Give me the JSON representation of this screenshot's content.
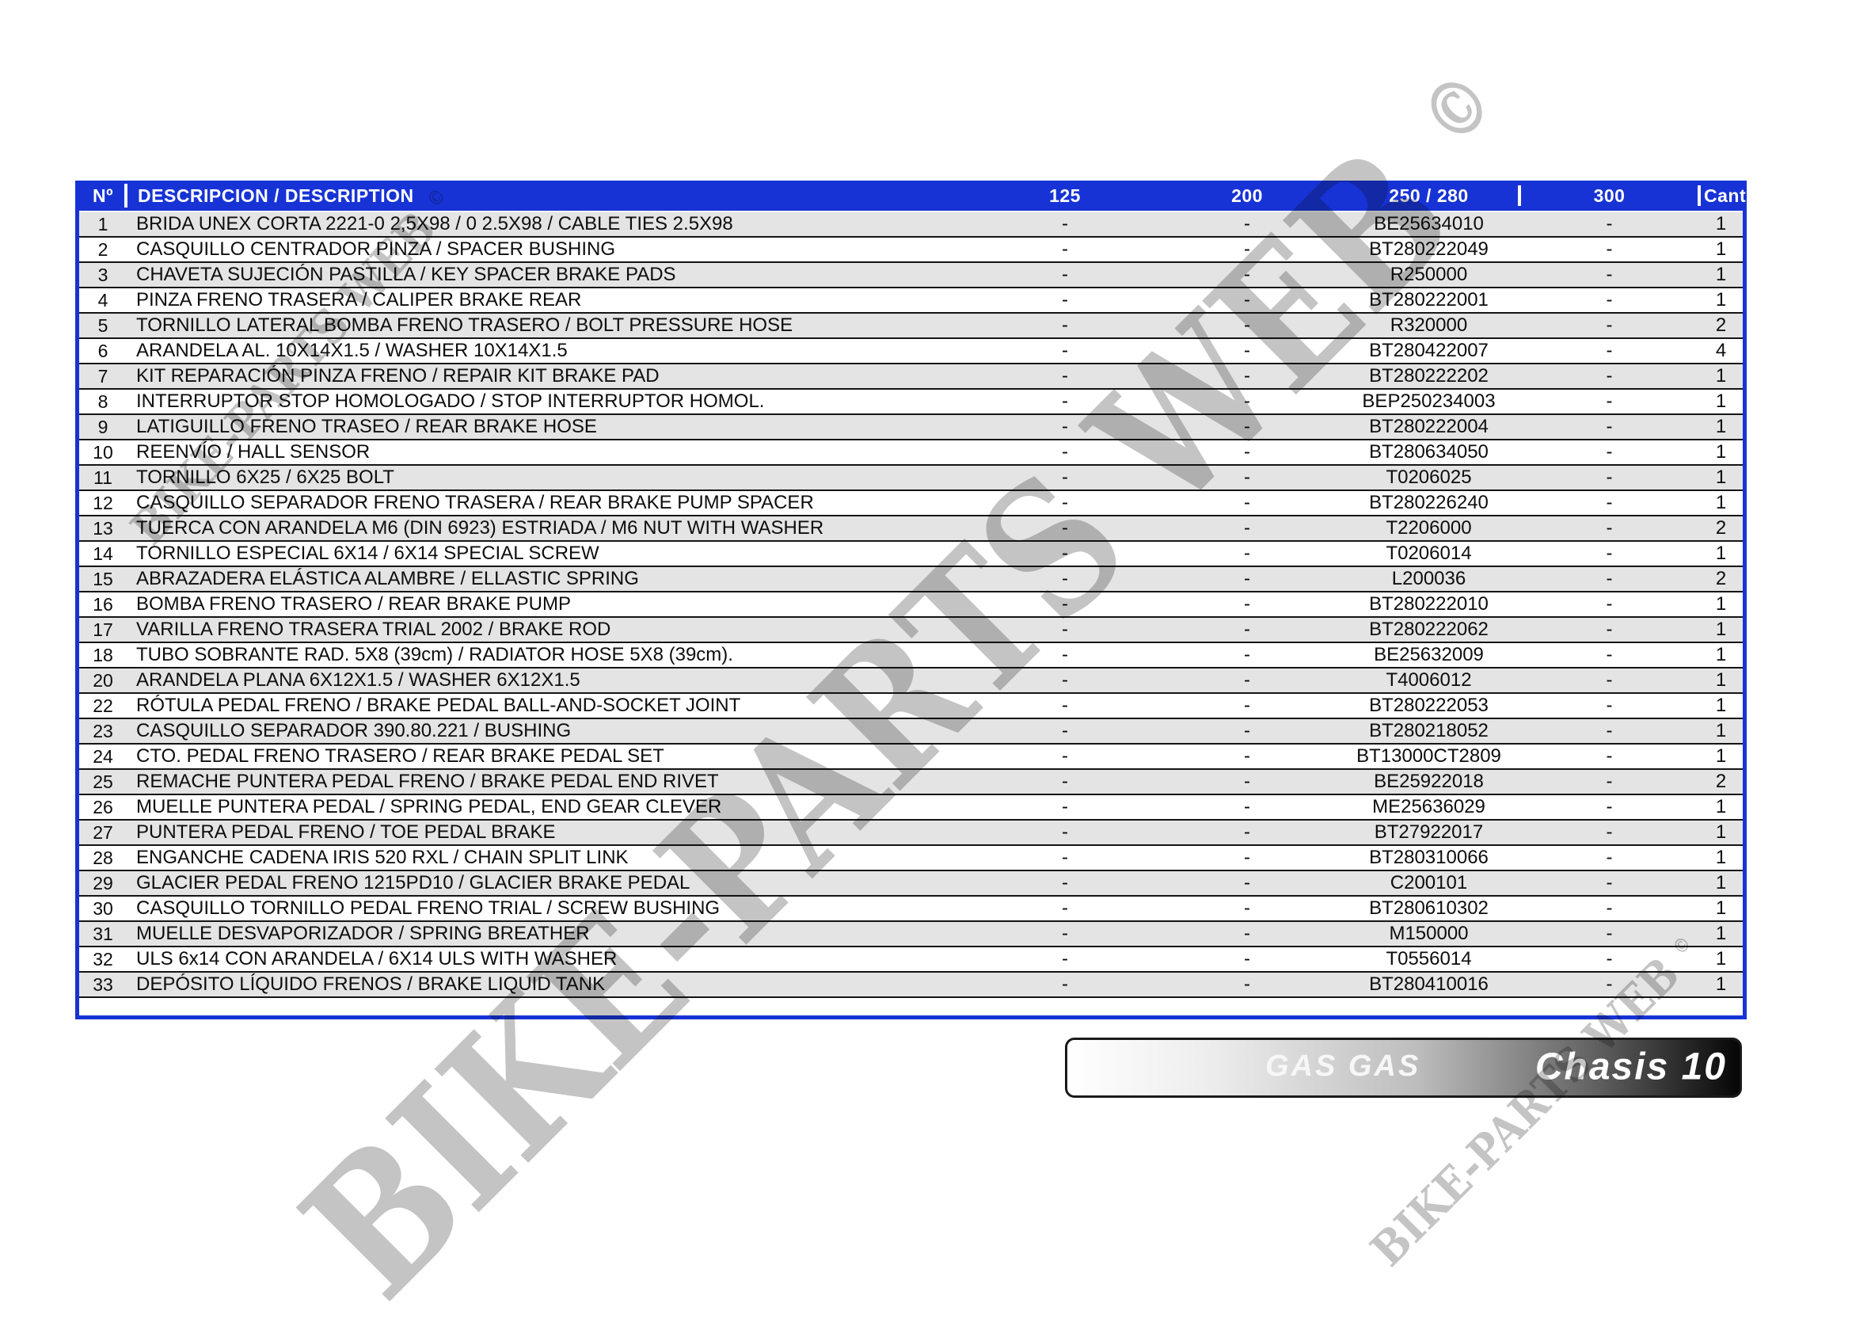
{
  "watermark": {
    "text": "BIKE-PARTS WEB",
    "symbol": "©",
    "color": "#c4c4c4"
  },
  "banner": {
    "brand": "GAS GAS",
    "title": "Chasis 10"
  },
  "table": {
    "header_bg": "#1733d6",
    "headers": {
      "no": "Nº",
      "description": "DESCRIPCION / DESCRIPTION",
      "c125": "125",
      "c200": "200",
      "c250": "250 / 280",
      "c300": "300",
      "cant": "Cant."
    },
    "rows": [
      {
        "no": "1",
        "description": "BRIDA UNEX CORTA 2221-0 2,5X98 / 0 2.5X98 / CABLE TIES 2.5X98",
        "c125": "-",
        "c200": "-",
        "part": "BE25634010",
        "c300": "-",
        "cant": "1"
      },
      {
        "no": "2",
        "description": "CASQUILLO CENTRADOR PINZA / SPACER BUSHING",
        "c125": "-",
        "c200": "-",
        "part": "BT280222049",
        "c300": "-",
        "cant": "1"
      },
      {
        "no": "3",
        "description": "CHAVETA SUJECIÓN PASTILLA / KEY SPACER BRAKE PADS",
        "c125": "-",
        "c200": "-",
        "part": "R250000",
        "c300": "-",
        "cant": "1"
      },
      {
        "no": "4",
        "description": "PINZA FRENO TRASERA / CALIPER BRAKE REAR",
        "c125": "-",
        "c200": "-",
        "part": "BT280222001",
        "c300": "-",
        "cant": "1"
      },
      {
        "no": "5",
        "description": "TORNILLO LATERAL BOMBA FRENO TRASERO / BOLT PRESSURE HOSE",
        "c125": "-",
        "c200": "-",
        "part": "R320000",
        "c300": "-",
        "cant": "2"
      },
      {
        "no": "6",
        "description": "ARANDELA AL. 10X14X1.5 / WASHER 10X14X1.5",
        "c125": "-",
        "c200": "-",
        "part": "BT280422007",
        "c300": "-",
        "cant": "4"
      },
      {
        "no": "7",
        "description": "KIT REPARACIÓN PINZA FRENO / REPAIR KIT BRAKE PAD",
        "c125": "-",
        "c200": "-",
        "part": "BT280222202",
        "c300": "-",
        "cant": "1"
      },
      {
        "no": "8",
        "description": "INTERRUPTOR STOP HOMOLOGADO / STOP INTERRUPTOR HOMOL.",
        "c125": "-",
        "c200": "-",
        "part": "BEP250234003",
        "c300": "-",
        "cant": "1"
      },
      {
        "no": "9",
        "description": "LATIGUILLO FRENO TRASEO / REAR BRAKE HOSE",
        "c125": "-",
        "c200": "-",
        "part": "BT280222004",
        "c300": "-",
        "cant": "1"
      },
      {
        "no": "10",
        "description": "REENVÍO / HALL SENSOR",
        "c125": "-",
        "c200": "-",
        "part": "BT280634050",
        "c300": "-",
        "cant": "1"
      },
      {
        "no": "11",
        "description": "TORNILLO 6X25 / 6X25 BOLT",
        "c125": "-",
        "c200": "-",
        "part": "T0206025",
        "c300": "-",
        "cant": "1"
      },
      {
        "no": "12",
        "description": "CASQUILLO SEPARADOR FRENO TRASERA / REAR BRAKE PUMP SPACER",
        "c125": "-",
        "c200": "-",
        "part": "BT280226240",
        "c300": "-",
        "cant": "1"
      },
      {
        "no": "13",
        "description": "TUERCA CON ARANDELA M6 (DIN 6923) ESTRIADA / M6 NUT WITH WASHER",
        "c125": "-",
        "c200": "-",
        "part": "T2206000",
        "c300": "-",
        "cant": "2"
      },
      {
        "no": "14",
        "description": "TORNILLO ESPECIAL 6X14 / 6X14 SPECIAL SCREW",
        "c125": "-",
        "c200": "-",
        "part": "T0206014",
        "c300": "-",
        "cant": "1"
      },
      {
        "no": "15",
        "description": "ABRAZADERA ELÁSTICA ALAMBRE / ELLASTIC SPRING",
        "c125": "-",
        "c200": "-",
        "part": "L200036",
        "c300": "-",
        "cant": "2"
      },
      {
        "no": "16",
        "description": "BOMBA FRENO TRASERO / REAR BRAKE PUMP",
        "c125": "-",
        "c200": "-",
        "part": "BT280222010",
        "c300": "-",
        "cant": "1"
      },
      {
        "no": "17",
        "description": "VARILLA FRENO TRASERA TRIAL 2002 / BRAKE ROD",
        "c125": "-",
        "c200": "-",
        "part": "BT280222062",
        "c300": "-",
        "cant": "1"
      },
      {
        "no": "18",
        "description": "TUBO SOBRANTE RAD. 5X8 (39cm) / RADIATOR HOSE 5X8 (39cm).",
        "c125": "-",
        "c200": "-",
        "part": "BE25632009",
        "c300": "-",
        "cant": "1"
      },
      {
        "no": "20",
        "description": "ARANDELA PLANA 6X12X1.5 / WASHER 6X12X1.5",
        "c125": "-",
        "c200": "-",
        "part": "T4006012",
        "c300": "-",
        "cant": "1"
      },
      {
        "no": "22",
        "description": "RÓTULA PEDAL FRENO / BRAKE PEDAL BALL-AND-SOCKET JOINT",
        "c125": "-",
        "c200": "-",
        "part": "BT280222053",
        "c300": "-",
        "cant": "1"
      },
      {
        "no": "23",
        "description": "CASQUILLO SEPARADOR 390.80.221 / BUSHING",
        "c125": "-",
        "c200": "-",
        "part": "BT280218052",
        "c300": "-",
        "cant": "1"
      },
      {
        "no": "24",
        "description": "CTO. PEDAL FRENO TRASERO / REAR BRAKE PEDAL SET",
        "c125": "-",
        "c200": "-",
        "part": "BT13000CT2809",
        "c300": "-",
        "cant": "1"
      },
      {
        "no": "25",
        "description": "REMACHE PUNTERA PEDAL FRENO / BRAKE PEDAL END RIVET",
        "c125": "-",
        "c200": "-",
        "part": "BE25922018",
        "c300": "-",
        "cant": "2"
      },
      {
        "no": "26",
        "description": "MUELLE PUNTERA PEDAL / SPRING PEDAL, END GEAR CLEVER",
        "c125": "-",
        "c200": "-",
        "part": "ME25636029",
        "c300": "-",
        "cant": "1"
      },
      {
        "no": "27",
        "description": "PUNTERA PEDAL FRENO / TOE PEDAL BRAKE",
        "c125": "-",
        "c200": "-",
        "part": "BT27922017",
        "c300": "-",
        "cant": "1"
      },
      {
        "no": "28",
        "description": "ENGANCHE CADENA IRIS 520 RXL / CHAIN SPLIT LINK",
        "c125": "-",
        "c200": "-",
        "part": "BT280310066",
        "c300": "-",
        "cant": "1"
      },
      {
        "no": "29",
        "description": "GLACIER PEDAL FRENO 1215PD10 / GLACIER BRAKE PEDAL",
        "c125": "-",
        "c200": "-",
        "part": "C200101",
        "c300": "-",
        "cant": "1"
      },
      {
        "no": "30",
        "description": "CASQUILLO TORNILLO PEDAL FRENO TRIAL / SCREW BUSHING",
        "c125": "-",
        "c200": "-",
        "part": "BT280610302",
        "c300": "-",
        "cant": "1"
      },
      {
        "no": "31",
        "description": "MUELLE DESVAPORIZADOR / SPRING BREATHER",
        "c125": "-",
        "c200": "-",
        "part": "M150000",
        "c300": "-",
        "cant": "1"
      },
      {
        "no": "32",
        "description": "ULS 6x14 CON ARANDELA / 6X14 ULS WITH WASHER",
        "c125": "-",
        "c200": "-",
        "part": "T0556014",
        "c300": "-",
        "cant": "1"
      },
      {
        "no": "33",
        "description": "DEPÓSITO LÍQUIDO FRENOS / BRAKE LIQUID TANK",
        "c125": "-",
        "c200": "-",
        "part": "BT280410016",
        "c300": "-",
        "cant": "1"
      }
    ]
  }
}
